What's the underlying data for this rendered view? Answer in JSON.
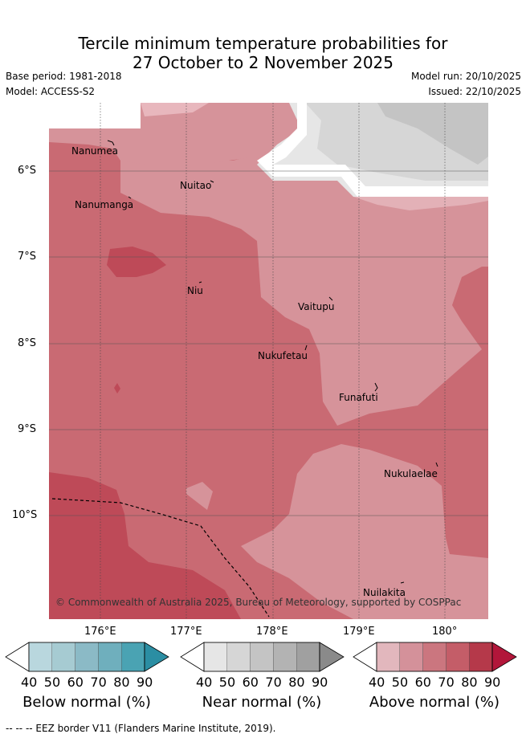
{
  "title": {
    "line1": "Tercile minimum temperature probabilities for",
    "line2": "27 October to 2 November 2025"
  },
  "meta": {
    "base_period": "Base period: 1981-2018",
    "model": "Model: ACCESS-S2",
    "model_run": "Model run: 20/10/2025",
    "issued": "Issued: 22/10/2025"
  },
  "axes": {
    "lat_labels": [
      "6°S",
      "7°S",
      "8°S",
      "9°S",
      "10°S"
    ],
    "lon_labels": [
      "176°E",
      "177°E",
      "178°E",
      "179°E",
      "180°"
    ]
  },
  "places": [
    "Nanumea",
    "Nuitao",
    "Nanumanga",
    "Niu",
    "Vaitupu",
    "Nukufetau",
    "Funafuti",
    "Nukulaelae",
    "Nuilakita"
  ],
  "copyright": "© Commonwealth of Australia 2025, Bureau of Meteorology, supported by COSPPac",
  "colorbars": {
    "ticks": [
      "40",
      "50",
      "60",
      "70",
      "80",
      "90"
    ],
    "below": {
      "title": "Below normal (%)",
      "colors": [
        "#b9d7de",
        "#a6cbd2",
        "#8bbac6",
        "#6fafbd",
        "#4aa3b3",
        "#2b8ea3"
      ]
    },
    "near": {
      "title": "Near normal (%)",
      "colors": [
        "#e6e6e6",
        "#d6d6d6",
        "#c4c4c4",
        "#b3b3b3",
        "#a0a0a0",
        "#8a8a8a"
      ]
    },
    "above": {
      "title": "Above normal (%)",
      "colors": [
        "#e2b7bd",
        "#d4919a",
        "#cb767f",
        "#c45d68",
        "#b5394a",
        "#b2163a"
      ]
    }
  },
  "footnote": "--  --  -- EEZ border V11 (Flanders Marine Institute, 2019)."
}
